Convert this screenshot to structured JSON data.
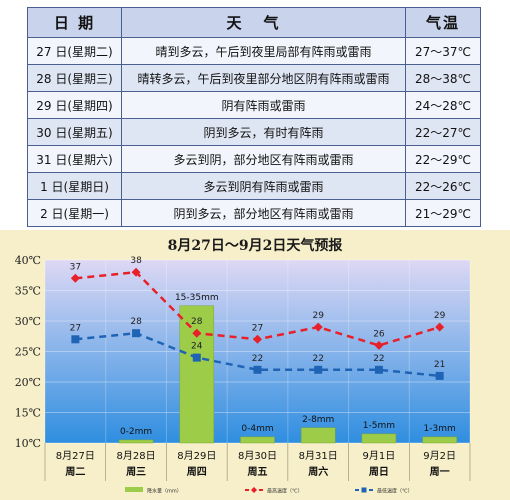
{
  "table": {
    "headers": {
      "date": "日 期",
      "desc": "天气",
      "temp": "气温"
    },
    "rows": [
      {
        "date": "27 日(星期二)",
        "desc": "晴到多云，午后到夜里局部有阵雨或雷雨",
        "temp": "27～37℃"
      },
      {
        "date": "28 日(星期三)",
        "desc": "晴转多云，午后到夜里部分地区阴有阵雨或雷雨",
        "temp": "28～38℃"
      },
      {
        "date": "29 日(星期四)",
        "desc": "阴有阵雨或雷雨",
        "temp": "24～28℃"
      },
      {
        "date": "30 日(星期五)",
        "desc": "阴到多云，有时有阵雨",
        "temp": "22～27℃"
      },
      {
        "date": "31 日(星期六)",
        "desc": "多云到阴，部分地区有阵雨或雷雨",
        "temp": "22～29℃"
      },
      {
        "date": "1 日(星期日)",
        "desc": "多云到阴有阵雨或雷雨",
        "temp": "22～26℃"
      },
      {
        "date": "2 日(星期一)",
        "desc": "阴到多云，部分地区有阵雨或雷雨",
        "temp": "21～29℃"
      }
    ]
  },
  "chart_data": {
    "type": "line",
    "title": "8月27日～9月2日天气预报",
    "categories": [
      "8月27日",
      "8月28日",
      "8月29日",
      "8月30日",
      "8月31日",
      "9月1日",
      "9月2日"
    ],
    "weekdays": [
      "周二",
      "周三",
      "周四",
      "周五",
      "周六",
      "周日",
      "周一"
    ],
    "ylim": [
      10,
      40
    ],
    "yticks": [
      10,
      15,
      20,
      25,
      30,
      35,
      40
    ],
    "ytick_unit": "℃",
    "series": [
      {
        "name": "最高温度（℃）",
        "color": "#e8202a",
        "values": [
          37,
          38,
          28,
          27,
          29,
          26,
          29
        ]
      },
      {
        "name": "最低温度（℃）",
        "color": "#1f64b4",
        "values": [
          27,
          28,
          24,
          22,
          22,
          22,
          21
        ]
      }
    ],
    "rain": {
      "name": "降水量（mm）",
      "color": "#9ccc48",
      "labels": [
        "",
        "0-2mm",
        "15-35mm",
        "0-4mm",
        "2-8mm",
        "1-5mm",
        "1-3mm"
      ],
      "values": [
        0,
        0.5,
        22.5,
        1,
        2.5,
        1.5,
        1
      ]
    },
    "legend_position": "bottom",
    "colors": {
      "bg_top": "#ddd8f4",
      "bg_bottom": "#2f8ee0",
      "frame": "#f6efc9",
      "title": "#1a1a1a"
    }
  }
}
